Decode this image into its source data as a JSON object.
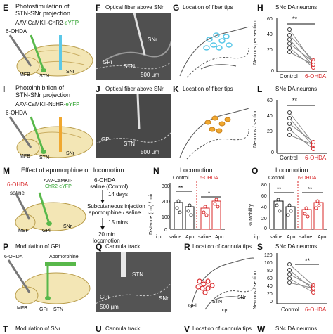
{
  "rowE": {
    "panel_letter": "E",
    "title_line1": "Photostimulation of",
    "title_line2": "STN-SNr projection",
    "virus_prefix": "AAV-CaMKII-ChR2-",
    "virus_suffix": "eYFP",
    "lesion": "6-OHDA",
    "labels": {
      "mfb": "MFB",
      "stn": "STN",
      "snr": "SNr"
    }
  },
  "rowF": {
    "panel_letter": "F",
    "title": "Optical fiber above SNr",
    "labels": {
      "snr": "SNr",
      "gpi": "GPi",
      "stn": "STN"
    },
    "scale": "500 μm"
  },
  "rowG": {
    "panel_letter": "G",
    "title": "Location of fiber tips"
  },
  "rowH": {
    "panel_letter": "H",
    "title": "SNc DA neurons",
    "ylabel": "Neurons per section",
    "yticks": [
      "0",
      "20",
      "40",
      "60"
    ],
    "xcats": [
      "Control",
      "6-OHDA"
    ],
    "sig": "**"
  },
  "rowI": {
    "panel_letter": "I",
    "title_line1": "Photoinhibition of",
    "title_line2": "STN-SNr projection",
    "virus_prefix": "AAV-CaMKII-NpHR-",
    "virus_suffix": "eYFP",
    "lesion": "6-OHDA",
    "labels": {
      "mfb": "MFB",
      "stn": "STN",
      "snr": "SNr"
    }
  },
  "rowJ": {
    "panel_letter": "J",
    "title": "Optical fiber above SNr",
    "labels": {
      "gpi": "GPi",
      "stn": "STN"
    },
    "scale": "500 μm"
  },
  "rowK": {
    "panel_letter": "K",
    "title": "Location of fiber tips"
  },
  "rowL": {
    "panel_letter": "L",
    "title": "SNc DA neurons",
    "ylabel": "Neurons / section",
    "yticks": [
      "0",
      "20",
      "40",
      "60"
    ],
    "xcats": [
      "Control",
      "6-OHDA"
    ],
    "sig": "**"
  },
  "rowM": {
    "panel_letter": "M",
    "title": "Effect of apomorphine on locomotion",
    "lesion": "6-OHDA",
    "saline": "saline",
    "virus_line1": "AAV-CaMKII-",
    "virus_line2": "ChR2-eYFP",
    "labels": {
      "mbf": "MBF",
      "gpi": "GPi",
      "snr": "SNr"
    },
    "timeline": {
      "step1a": "6-OHDA",
      "step1b": "saline (Control)",
      "arrow1": "14 days",
      "step2a": "Subcutaneous injection",
      "step2b": "apomorphine / saline",
      "arrow2": "15 mins",
      "step3a": "20 min",
      "step3b": "locomotion"
    }
  },
  "rowN": {
    "panel_letter": "N",
    "title": "Locomotion",
    "group_control": "Control",
    "group_lesion": "6-OHDA",
    "ylabel": "Distance (cm) / min",
    "yticks": [
      "0",
      "100",
      "200",
      "300"
    ],
    "ip": "i.p.",
    "xcats": [
      "saline",
      "Apo",
      "saline",
      "Apo"
    ],
    "sig1": "**",
    "sig2": "*"
  },
  "rowO": {
    "panel_letter": "O",
    "title": "Locomotion",
    "group_control": "Control",
    "group_lesion": "6-OHDA",
    "ylabel": "% Mobility",
    "yticks": [
      "0",
      "20",
      "40",
      "60",
      "80"
    ],
    "ip": "i.p.",
    "xcats": [
      "saline",
      "Apo",
      "saline",
      "Apo"
    ],
    "sig1": "**",
    "sig2": "**"
  },
  "rowP": {
    "panel_letter": "P",
    "title": "Modulation of GPi",
    "lesion": "6-OHDA",
    "drug": "Apomorphine",
    "labels": {
      "mfb": "MFB",
      "gpi": "GPi",
      "stn": "STN"
    }
  },
  "rowQ": {
    "panel_letter": "Q",
    "title": "Cannula track",
    "labels": {
      "stn": "STN",
      "gpi": "GPi",
      "snr": "SNr"
    },
    "scale": "500 μm"
  },
  "rowR": {
    "panel_letter": "R",
    "title": "Location of cannula tips",
    "labels": {
      "gpi": "GPi",
      "stn": "STN",
      "cp": "cp",
      "snr": "SNr"
    }
  },
  "rowS": {
    "panel_letter": "S",
    "title": "SNc DA neurons",
    "ylabel": "Neurons / section",
    "yticks": [
      "0",
      "20",
      "40",
      "60",
      "80",
      "100",
      "120"
    ],
    "xcats": [
      "Control",
      "6-OHDA"
    ],
    "sig": "**"
  },
  "rowT": {
    "panel_letter": "T",
    "title": "Modulation of SNr"
  },
  "rowU": {
    "panel_letter": "U",
    "title": "Cannula track"
  },
  "rowV": {
    "panel_letter": "V",
    "title": "Location of cannula tips"
  },
  "rowW": {
    "panel_letter": "W",
    "title": "SNc DA neurons"
  },
  "colors": {
    "red": "#d8282a",
    "green": "#2aa02a",
    "orange": "#f0a830",
    "cyan": "#5bc8e8"
  }
}
